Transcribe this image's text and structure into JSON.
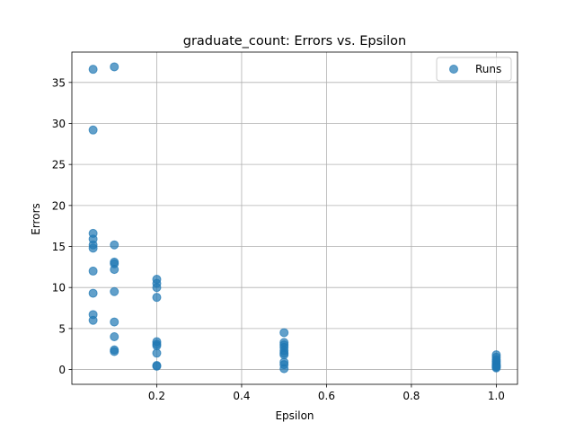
{
  "chart_data": {
    "type": "scatter",
    "title": "graduate_count: Errors vs. Epsilon",
    "xlabel": "Epsilon",
    "ylabel": "Errors",
    "xlim": [
      0.0,
      1.05
    ],
    "ylim": [
      -1.8,
      38.7
    ],
    "xticks": [
      0.2,
      0.4,
      0.6,
      0.8,
      1.0
    ],
    "xtick_labels": [
      "0.2",
      "0.4",
      "0.6",
      "0.8",
      "1.0"
    ],
    "yticks": [
      0,
      5,
      10,
      15,
      20,
      25,
      30,
      35
    ],
    "ytick_labels": [
      "0",
      "5",
      "10",
      "15",
      "20",
      "25",
      "30",
      "35"
    ],
    "grid": true,
    "legend_position": "top-right",
    "series": [
      {
        "name": "Runs",
        "color": "#1f77b4",
        "points": [
          {
            "x": 0.05,
            "y": 36.6
          },
          {
            "x": 0.05,
            "y": 29.2
          },
          {
            "x": 0.05,
            "y": 16.6
          },
          {
            "x": 0.05,
            "y": 15.9
          },
          {
            "x": 0.05,
            "y": 15.2
          },
          {
            "x": 0.05,
            "y": 14.8
          },
          {
            "x": 0.05,
            "y": 12.0
          },
          {
            "x": 0.05,
            "y": 9.3
          },
          {
            "x": 0.05,
            "y": 6.7
          },
          {
            "x": 0.05,
            "y": 6.0
          },
          {
            "x": 0.1,
            "y": 36.9
          },
          {
            "x": 0.1,
            "y": 15.2
          },
          {
            "x": 0.1,
            "y": 13.1
          },
          {
            "x": 0.1,
            "y": 12.9
          },
          {
            "x": 0.1,
            "y": 12.2
          },
          {
            "x": 0.1,
            "y": 9.5
          },
          {
            "x": 0.1,
            "y": 5.8
          },
          {
            "x": 0.1,
            "y": 4.0
          },
          {
            "x": 0.1,
            "y": 2.4
          },
          {
            "x": 0.1,
            "y": 2.2
          },
          {
            "x": 0.2,
            "y": 11.0
          },
          {
            "x": 0.2,
            "y": 10.5
          },
          {
            "x": 0.2,
            "y": 10.0
          },
          {
            "x": 0.2,
            "y": 8.8
          },
          {
            "x": 0.2,
            "y": 3.4
          },
          {
            "x": 0.2,
            "y": 3.1
          },
          {
            "x": 0.2,
            "y": 2.9
          },
          {
            "x": 0.2,
            "y": 2.0
          },
          {
            "x": 0.2,
            "y": 0.5
          },
          {
            "x": 0.2,
            "y": 0.4
          },
          {
            "x": 0.5,
            "y": 4.5
          },
          {
            "x": 0.5,
            "y": 3.3
          },
          {
            "x": 0.5,
            "y": 3.0
          },
          {
            "x": 0.5,
            "y": 2.7
          },
          {
            "x": 0.5,
            "y": 2.3
          },
          {
            "x": 0.5,
            "y": 2.0
          },
          {
            "x": 0.5,
            "y": 1.8
          },
          {
            "x": 0.5,
            "y": 0.9
          },
          {
            "x": 0.5,
            "y": 0.6
          },
          {
            "x": 0.5,
            "y": 0.1
          },
          {
            "x": 1.0,
            "y": 1.8
          },
          {
            "x": 1.0,
            "y": 1.5
          },
          {
            "x": 1.0,
            "y": 1.2
          },
          {
            "x": 1.0,
            "y": 1.0
          },
          {
            "x": 1.0,
            "y": 0.8
          },
          {
            "x": 1.0,
            "y": 0.6
          },
          {
            "x": 1.0,
            "y": 0.5
          },
          {
            "x": 1.0,
            "y": 0.4
          },
          {
            "x": 1.0,
            "y": 0.3
          },
          {
            "x": 1.0,
            "y": 0.2
          }
        ]
      }
    ]
  }
}
